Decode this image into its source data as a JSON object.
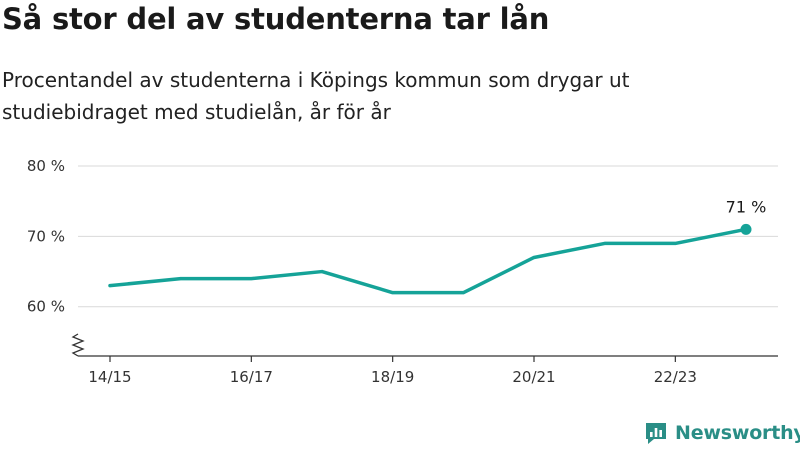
{
  "header": {
    "title": "Så stor del av studenterna tar lån",
    "subtitle": "Procentandel av studenterna i Köpings kommun som drygar ut studiebidraget med studielån, år för år"
  },
  "brand": {
    "name": "Newsworthy",
    "color": "#2a8e86"
  },
  "chart_data": {
    "type": "line",
    "title": "",
    "xlabel": "",
    "ylabel": "",
    "x": [
      "14/15",
      "15/16",
      "16/17",
      "17/18",
      "18/19",
      "19/20",
      "20/21",
      "21/22",
      "22/23",
      "23/24"
    ],
    "x_tick_labels": [
      "14/15",
      "16/17",
      "18/19",
      "20/21",
      "22/23"
    ],
    "y_ticks": [
      60,
      70,
      80
    ],
    "y_tick_labels": [
      "60 %",
      "70 %",
      "80 %"
    ],
    "ylim": [
      53,
      80
    ],
    "y_axis_break": true,
    "grid": true,
    "series": [
      {
        "values": [
          63,
          64,
          64,
          65,
          62,
          62,
          67,
          69,
          69,
          71
        ],
        "color": "#15a398"
      }
    ],
    "annotations": [
      {
        "x": "23/24",
        "text": "71 %"
      }
    ]
  }
}
